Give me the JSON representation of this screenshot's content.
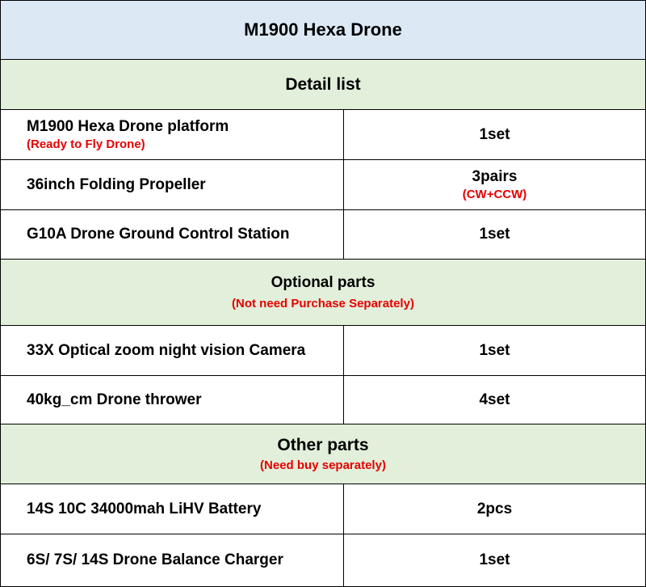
{
  "title": "M1900 Hexa Drone",
  "sections": [
    {
      "heading": "Detail list",
      "note": "",
      "items": [
        {
          "name": "M1900 Hexa Drone platform",
          "name_note": "(Ready to Fly Drone)",
          "qty": "1set",
          "qty_note": ""
        },
        {
          "name": "36inch Folding Propeller",
          "name_note": "",
          "qty": "3pairs",
          "qty_note": "(CW+CCW)"
        },
        {
          "name": "G10A Drone Ground Control Station",
          "name_note": "",
          "qty": "1set",
          "qty_note": ""
        }
      ]
    },
    {
      "heading": "Optional parts",
      "note": "(Not need Purchase Separately)",
      "items": [
        {
          "name": "33X Optical zoom night vision Camera",
          "name_note": "",
          "qty": "1set",
          "qty_note": ""
        },
        {
          "name": "40kg_cm Drone thrower",
          "name_note": "",
          "qty": "4set",
          "qty_note": ""
        }
      ]
    },
    {
      "heading": "Other parts",
      "note": "(Need buy separately)",
      "items": [
        {
          "name": "14S 10C 34000mah LiHV Battery",
          "name_note": "",
          "qty": "2pcs",
          "qty_note": ""
        },
        {
          "name": "6S/ 7S/ 14S Drone Balance Charger",
          "name_note": "",
          "qty": "1set",
          "qty_note": ""
        }
      ]
    }
  ],
  "colors": {
    "title_bg": "#dce9f5",
    "section_bg": "#e2efda",
    "note_red": "#e60000",
    "border": "#000000"
  }
}
